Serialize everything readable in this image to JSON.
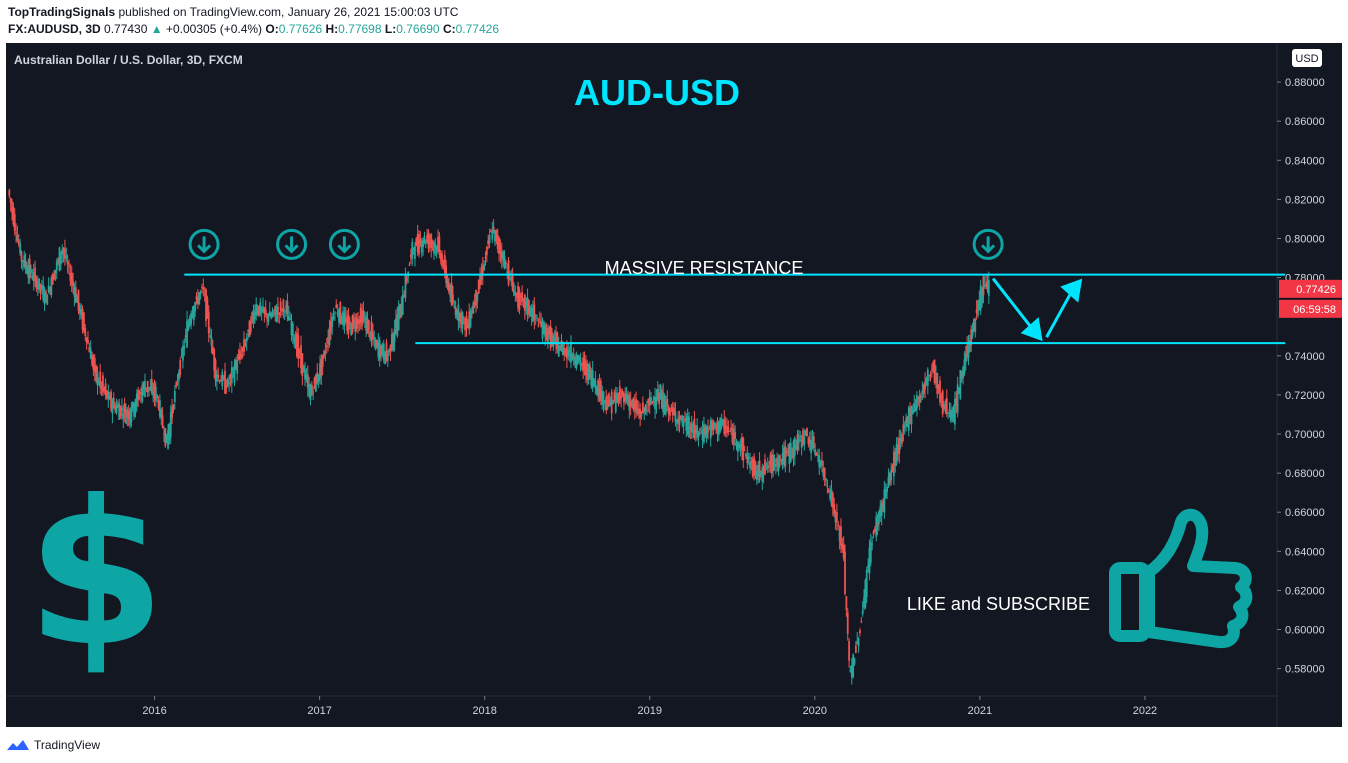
{
  "header": {
    "publisher": "TopTradingSignals",
    "published_text": "published on TradingView.com, January 26, 2021 15:00:03 UTC",
    "symbol": "FX:AUDUSD, 3D",
    "last": "0.77430",
    "change_arrow": "▲",
    "change": "+0.00305 (+0.4%)",
    "o_label": "O:",
    "o_val": "0.77626",
    "h_label": "H:",
    "h_val": "0.77698",
    "l_label": "L:",
    "l_val": "0.76690",
    "c_label": "C:",
    "c_val": "0.77426"
  },
  "chart_meta": {
    "instrument_label": "Australian Dollar / U.S. Dollar, 3D, FXCM",
    "big_title": "AUD-USD",
    "currency_badge": "USD",
    "price_tag": "0.77426",
    "countdown_tag": "06:59:58",
    "colors": {
      "background": "#131722",
      "accent": "#00e5ff",
      "teal_icon": "#0ea5a5",
      "bull": "#26a69a",
      "bear": "#ef5350",
      "tag": "#f23645"
    }
  },
  "chart_data": {
    "type": "candlestick",
    "title": "AUD-USD",
    "subtitle": "Australian Dollar / U.S. Dollar, 3D, FXCM",
    "x_ticks": [
      "2016",
      "2017",
      "2018",
      "2019",
      "2020",
      "2021",
      "2022"
    ],
    "y_ticks": [
      "0.88000",
      "0.86000",
      "0.84000",
      "0.82000",
      "0.80000",
      "0.78000",
      "0.74000",
      "0.72000",
      "0.70000",
      "0.68000",
      "0.66000",
      "0.64000",
      "0.62000",
      "0.60000",
      "0.58000"
    ],
    "ylim": [
      0.566,
      0.9
    ],
    "xlim": [
      2015.1,
      2022.8
    ],
    "last_price": 0.77426,
    "grid": false,
    "price_path": [
      [
        2015.12,
        0.825
      ],
      [
        2015.2,
        0.79
      ],
      [
        2015.35,
        0.77
      ],
      [
        2015.45,
        0.795
      ],
      [
        2015.55,
        0.765
      ],
      [
        2015.65,
        0.73
      ],
      [
        2015.75,
        0.715
      ],
      [
        2015.85,
        0.71
      ],
      [
        2015.95,
        0.725
      ],
      [
        2016.02,
        0.72
      ],
      [
        2016.08,
        0.695
      ],
      [
        2016.15,
        0.73
      ],
      [
        2016.22,
        0.76
      ],
      [
        2016.3,
        0.775
      ],
      [
        2016.38,
        0.73
      ],
      [
        2016.45,
        0.725
      ],
      [
        2016.55,
        0.745
      ],
      [
        2016.62,
        0.765
      ],
      [
        2016.7,
        0.76
      ],
      [
        2016.8,
        0.765
      ],
      [
        2016.87,
        0.745
      ],
      [
        2016.95,
        0.72
      ],
      [
        2017.02,
        0.735
      ],
      [
        2017.1,
        0.765
      ],
      [
        2017.18,
        0.755
      ],
      [
        2017.27,
        0.76
      ],
      [
        2017.35,
        0.745
      ],
      [
        2017.42,
        0.74
      ],
      [
        2017.5,
        0.765
      ],
      [
        2017.57,
        0.795
      ],
      [
        2017.65,
        0.8
      ],
      [
        2017.73,
        0.795
      ],
      [
        2017.82,
        0.765
      ],
      [
        2017.9,
        0.755
      ],
      [
        2017.97,
        0.775
      ],
      [
        2018.05,
        0.805
      ],
      [
        2018.12,
        0.79
      ],
      [
        2018.2,
        0.77
      ],
      [
        2018.27,
        0.765
      ],
      [
        2018.35,
        0.755
      ],
      [
        2018.45,
        0.745
      ],
      [
        2018.55,
        0.74
      ],
      [
        2018.65,
        0.73
      ],
      [
        2018.75,
        0.715
      ],
      [
        2018.85,
        0.72
      ],
      [
        2018.95,
        0.71
      ],
      [
        2019.05,
        0.72
      ],
      [
        2019.15,
        0.71
      ],
      [
        2019.3,
        0.7
      ],
      [
        2019.45,
        0.705
      ],
      [
        2019.55,
        0.695
      ],
      [
        2019.65,
        0.68
      ],
      [
        2019.75,
        0.685
      ],
      [
        2019.85,
        0.69
      ],
      [
        2019.95,
        0.7
      ],
      [
        2020.02,
        0.69
      ],
      [
        2020.1,
        0.67
      ],
      [
        2020.18,
        0.64
      ],
      [
        2020.22,
        0.575
      ],
      [
        2020.28,
        0.6
      ],
      [
        2020.35,
        0.645
      ],
      [
        2020.42,
        0.665
      ],
      [
        2020.5,
        0.69
      ],
      [
        2020.58,
        0.71
      ],
      [
        2020.65,
        0.72
      ],
      [
        2020.72,
        0.735
      ],
      [
        2020.78,
        0.715
      ],
      [
        2020.85,
        0.71
      ],
      [
        2020.92,
        0.74
      ],
      [
        2020.97,
        0.755
      ],
      [
        2021.02,
        0.775
      ],
      [
        2021.06,
        0.7743
      ]
    ],
    "annotations": {
      "resistance_label": "MASSIVE RESISTANCE",
      "cta_label": "LIKE and SUBSCRIBE",
      "resistance_line": {
        "from": [
          2016.18,
          0.7815
        ],
        "to": [
          2022.85,
          0.7815
        ]
      },
      "support_line": {
        "from": [
          2017.58,
          0.7465
        ],
        "to": [
          2022.85,
          0.7465
        ]
      },
      "down_markers": [
        [
          2016.3,
          0.797
        ],
        [
          2016.83,
          0.797
        ],
        [
          2017.15,
          0.797
        ],
        [
          2021.05,
          0.797
        ]
      ],
      "projection": [
        [
          2021.08,
          0.7795
        ],
        [
          2021.38,
          0.7475
        ],
        [
          2021.62,
          0.7795
        ]
      ]
    }
  },
  "footer": {
    "brand": "TradingView"
  }
}
